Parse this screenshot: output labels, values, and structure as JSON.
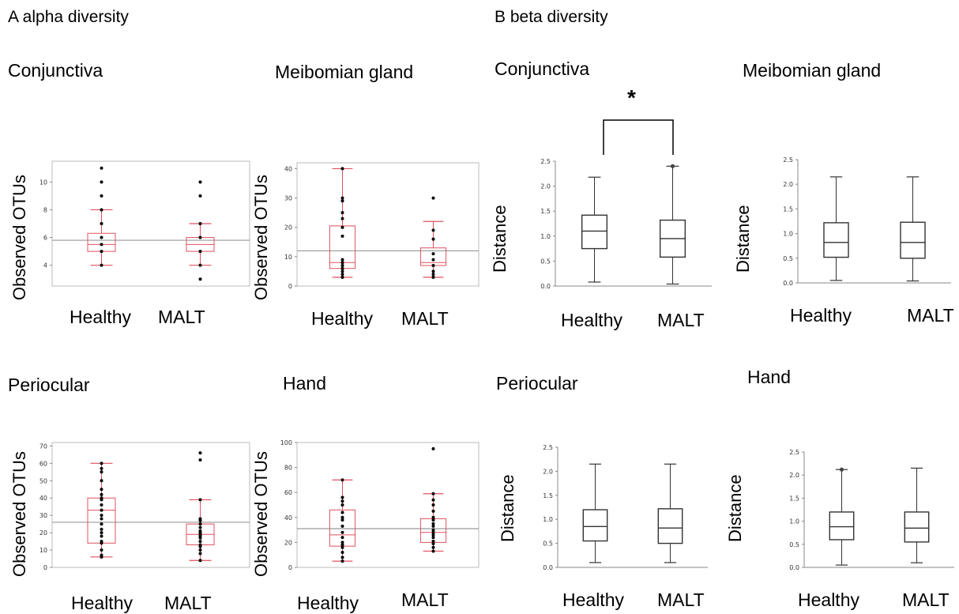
{
  "sections": {
    "alpha": "A  alpha diversity",
    "beta": "B  beta diversity"
  },
  "x_labels": [
    "Healthy",
    "MALT"
  ],
  "significance_marker": "*",
  "chart_data": [
    {
      "id": "alpha-conjunctiva",
      "type": "box",
      "title": "Conjunctiva",
      "ylabel": "Observed OTUs",
      "ylim": [
        2.5,
        11.5
      ],
      "yticks": [
        4,
        6,
        8,
        10
      ],
      "style": "red",
      "mean_line": 5.8,
      "categories": [
        "Healthy",
        "MALT"
      ],
      "boxes": [
        {
          "min": 4,
          "q1": 5,
          "median": 5.5,
          "q3": 6.3,
          "max": 8,
          "points": [
            4,
            5,
            5.5,
            6,
            7,
            8,
            9,
            10,
            11
          ]
        },
        {
          "min": 4,
          "q1": 5,
          "median": 5.5,
          "q3": 6,
          "max": 7,
          "points": [
            3,
            4,
            5,
            6,
            7,
            9,
            10
          ]
        }
      ]
    },
    {
      "id": "alpha-meibomian",
      "type": "box",
      "title": "Meibomian gland",
      "ylabel": "Observed OTUs",
      "ylim": [
        0,
        42
      ],
      "yticks": [
        0,
        10,
        20,
        30,
        40
      ],
      "style": "red",
      "mean_line": 12,
      "categories": [
        "Healthy",
        "MALT"
      ],
      "boxes": [
        {
          "min": 3,
          "q1": 6,
          "median": 8,
          "q3": 20.5,
          "max": 40,
          "points": [
            3,
            4,
            5,
            6,
            7,
            8,
            9,
            17,
            20,
            23,
            25,
            29,
            30,
            40
          ]
        },
        {
          "min": 3,
          "q1": 7,
          "median": 8,
          "q3": 13,
          "max": 22,
          "points": [
            3,
            4,
            5,
            7,
            9,
            11,
            16,
            19,
            30
          ]
        }
      ]
    },
    {
      "id": "alpha-periocular",
      "type": "box",
      "title": "Periocular",
      "ylabel": "Observed OTUs",
      "ylim": [
        0,
        72
      ],
      "yticks": [
        0,
        10,
        20,
        30,
        40,
        50,
        60,
        70
      ],
      "style": "red",
      "mean_line": 26,
      "categories": [
        "Healthy",
        "MALT"
      ],
      "boxes": [
        {
          "min": 6,
          "q1": 14,
          "median": 33,
          "q3": 40,
          "max": 60,
          "points": [
            6,
            7,
            10,
            14,
            15,
            18,
            20,
            22,
            25,
            28,
            30,
            33,
            36,
            39,
            40,
            42,
            45,
            50,
            55,
            57,
            60
          ]
        },
        {
          "min": 4,
          "q1": 13,
          "median": 19,
          "q3": 25,
          "max": 39,
          "points": [
            4,
            8,
            10,
            12,
            13,
            15,
            17,
            18,
            19,
            20,
            21,
            23,
            25,
            27,
            28,
            39,
            62,
            66
          ]
        }
      ]
    },
    {
      "id": "alpha-hand",
      "type": "box",
      "title": "Hand",
      "ylabel": "Observed OTUs",
      "ylim": [
        0,
        100
      ],
      "yticks": [
        0,
        20,
        40,
        60,
        80,
        100
      ],
      "style": "red",
      "mean_line": 31,
      "categories": [
        "Healthy",
        "MALT"
      ],
      "boxes": [
        {
          "min": 5,
          "q1": 17,
          "median": 26,
          "q3": 46,
          "max": 70,
          "points": [
            5,
            8,
            12,
            16,
            18,
            20,
            24,
            28,
            33,
            38,
            40,
            44,
            50,
            53,
            56,
            70
          ]
        },
        {
          "min": 13,
          "q1": 20,
          "median": 28,
          "q3": 39,
          "max": 59,
          "points": [
            13,
            16,
            19,
            21,
            24,
            26,
            28,
            30,
            33,
            35,
            38,
            40,
            45,
            50,
            54,
            59,
            95
          ]
        }
      ]
    },
    {
      "id": "beta-conjunctiva",
      "type": "box",
      "title": "Conjunctiva",
      "ylabel": "Distance",
      "ylim": [
        0,
        2.5
      ],
      "yticks": [
        0.0,
        0.5,
        1.0,
        1.5,
        2.0,
        2.5
      ],
      "style": "gray",
      "significance": true,
      "categories": [
        "Healthy",
        "MALT"
      ],
      "boxes": [
        {
          "min": 0.08,
          "q1": 0.75,
          "median": 1.1,
          "q3": 1.42,
          "max": 2.18,
          "points": []
        },
        {
          "min": 0.04,
          "q1": 0.58,
          "median": 0.95,
          "q3": 1.32,
          "max": 2.4,
          "points": [
            2.4
          ]
        }
      ]
    },
    {
      "id": "beta-meibomian",
      "type": "box",
      "title": "Meibomian gland",
      "ylabel": "Distance",
      "ylim": [
        0,
        2.5
      ],
      "yticks": [
        0.0,
        0.5,
        1.0,
        1.5,
        2.0,
        2.5
      ],
      "style": "gray",
      "categories": [
        "Healthy",
        "MALT"
      ],
      "boxes": [
        {
          "min": 0.05,
          "q1": 0.52,
          "median": 0.82,
          "q3": 1.22,
          "max": 2.15,
          "points": []
        },
        {
          "min": 0.04,
          "q1": 0.5,
          "median": 0.82,
          "q3": 1.23,
          "max": 2.15,
          "points": []
        }
      ]
    },
    {
      "id": "beta-periocular",
      "type": "box",
      "title": "Periocular",
      "ylabel": "Distance",
      "ylim": [
        0,
        2.5
      ],
      "yticks": [
        0.0,
        0.5,
        1.0,
        1.5,
        2.0,
        2.5
      ],
      "style": "gray",
      "categories": [
        "Healthy",
        "MALT"
      ],
      "boxes": [
        {
          "min": 0.1,
          "q1": 0.55,
          "median": 0.85,
          "q3": 1.2,
          "max": 2.15,
          "points": []
        },
        {
          "min": 0.1,
          "q1": 0.5,
          "median": 0.82,
          "q3": 1.22,
          "max": 2.15,
          "points": []
        }
      ]
    },
    {
      "id": "beta-hand",
      "type": "box",
      "title": "Hand",
      "ylabel": "Distance",
      "ylim": [
        0,
        2.5
      ],
      "yticks": [
        0.0,
        0.5,
        1.0,
        1.5,
        2.0,
        2.5
      ],
      "style": "gray",
      "categories": [
        "Healthy",
        "MALT"
      ],
      "boxes": [
        {
          "min": 0.05,
          "q1": 0.6,
          "median": 0.88,
          "q3": 1.2,
          "max": 2.12,
          "points": [
            2.12
          ]
        },
        {
          "min": 0.1,
          "q1": 0.55,
          "median": 0.85,
          "q3": 1.2,
          "max": 2.15,
          "points": []
        }
      ]
    }
  ]
}
